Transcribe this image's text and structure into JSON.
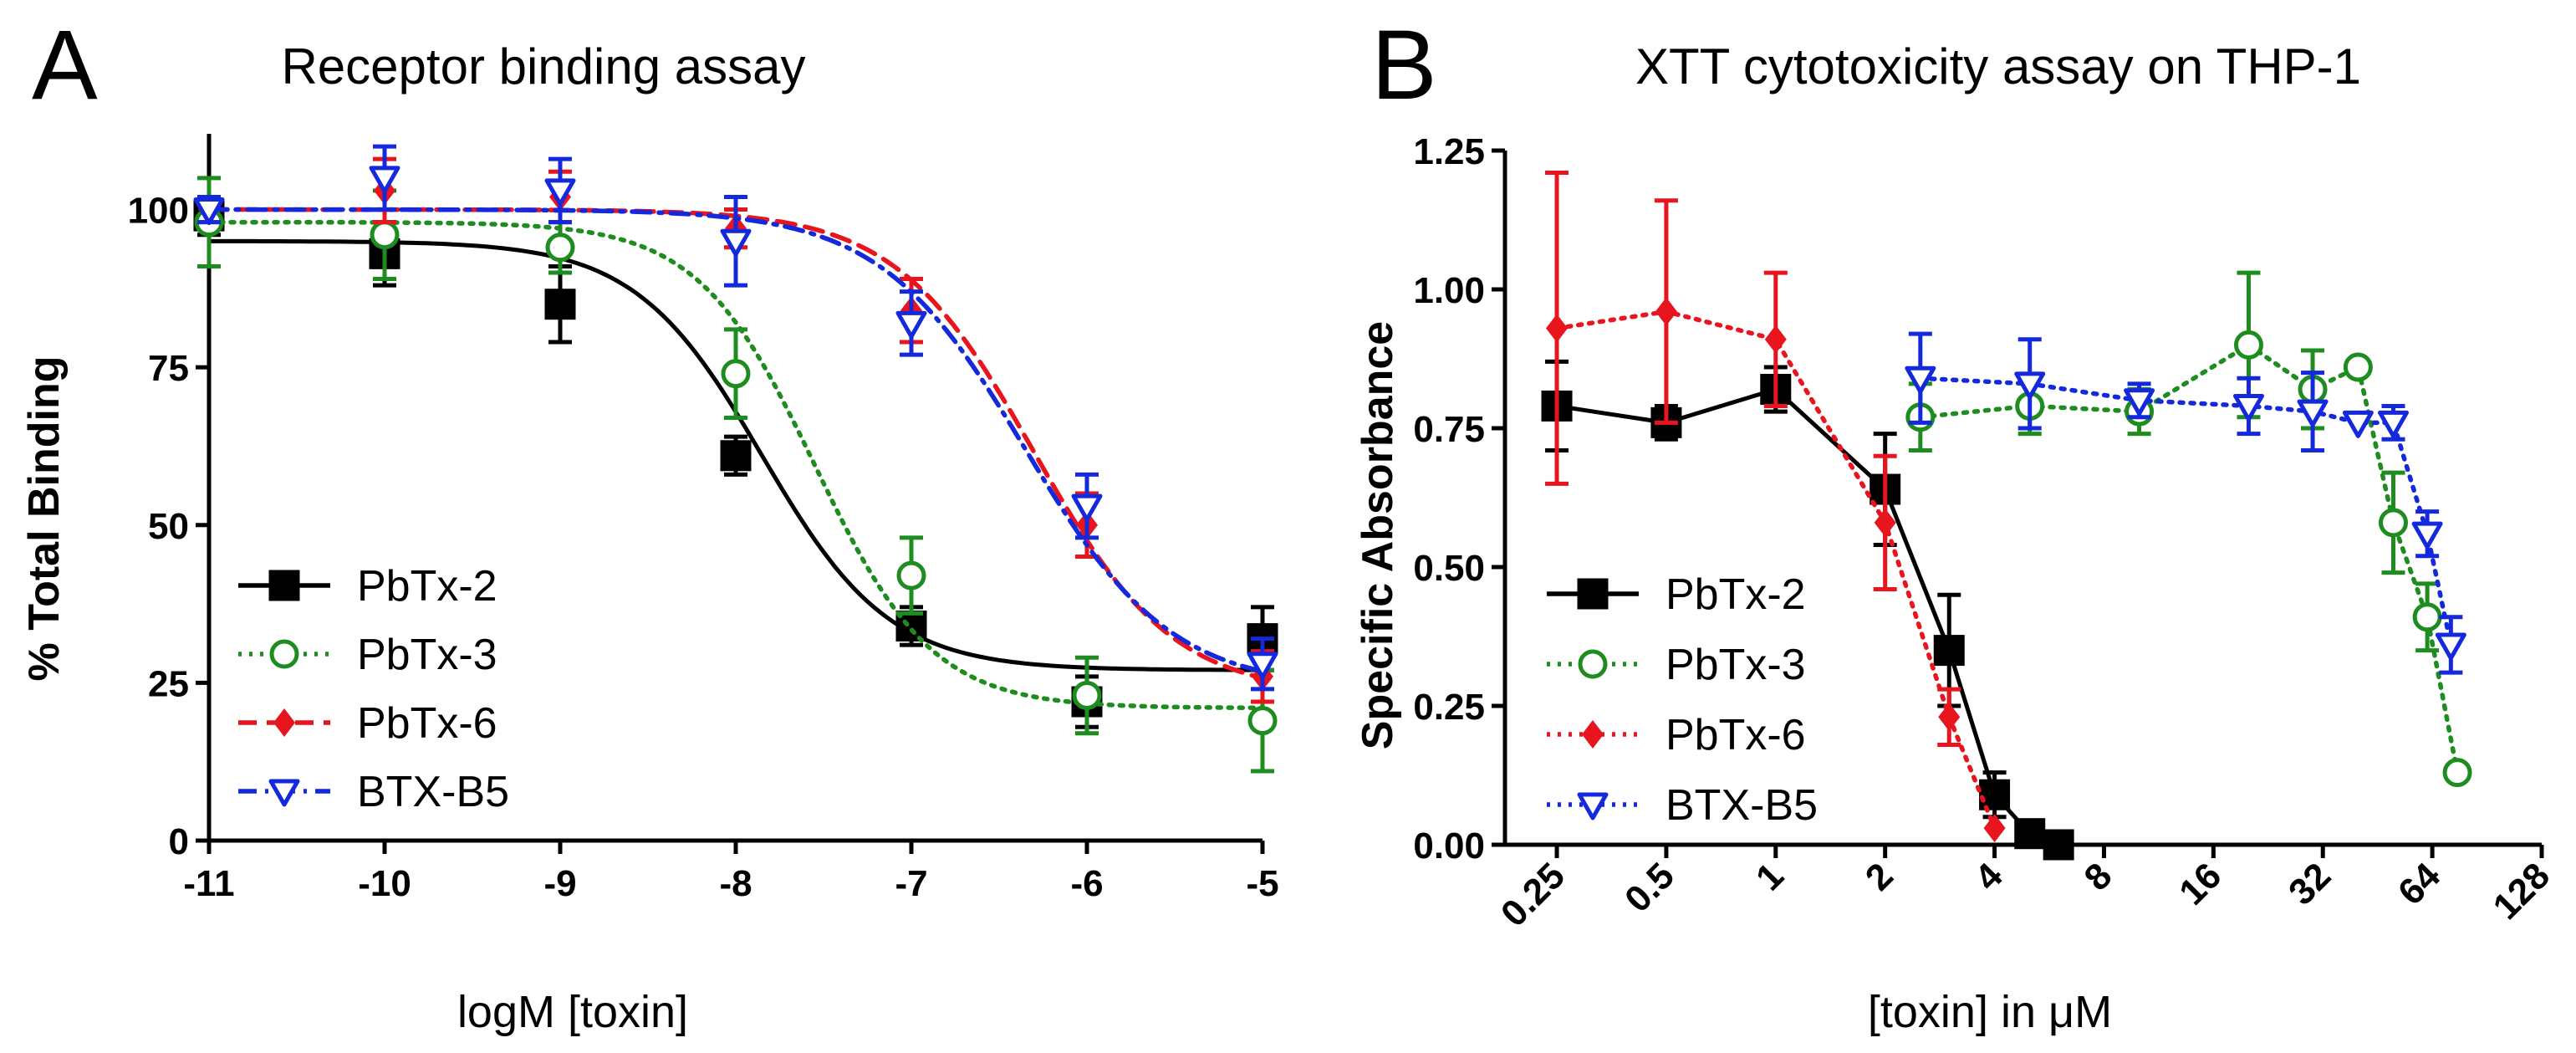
{
  "panels": [
    {
      "letter": "A"
    },
    {
      "letter": "B"
    }
  ],
  "chart_data": [
    {
      "type": "scatter",
      "title": "Receptor binding assay",
      "xlabel": "logM [toxin]",
      "ylabel": "% Total Binding",
      "xlim": [
        -11,
        -5
      ],
      "ylim": [
        0,
        112
      ],
      "xticks": [
        -11,
        -10,
        -9,
        -8,
        -7,
        -6,
        -5
      ],
      "xtick_labels": [
        "-11",
        "-10",
        "-9",
        "-8",
        "-7",
        "-6",
        "-5"
      ],
      "yticks": [
        0,
        25,
        50,
        75,
        100
      ],
      "ytick_labels": [
        "0",
        "25",
        "50",
        "75",
        "100"
      ],
      "legend_position": "bottom-left",
      "series": [
        {
          "name": "PbTx-2",
          "color": "#000000",
          "marker": "filled-square",
          "line": "solid",
          "fit": {
            "top": 95,
            "bottom": 27,
            "logEC50": -7.85,
            "hill": 1.2
          },
          "points": [
            {
              "x": -11,
              "y": 99,
              "err": 3
            },
            {
              "x": -10,
              "y": 93,
              "err": 5
            },
            {
              "x": -9,
              "y": 85,
              "err": 6
            },
            {
              "x": -8,
              "y": 61,
              "err": 3
            },
            {
              "x": -7,
              "y": 34,
              "err": 3
            },
            {
              "x": -6,
              "y": 22,
              "err": 4
            },
            {
              "x": -5,
              "y": 32,
              "err": 5
            }
          ]
        },
        {
          "name": "PbTx-3",
          "color": "#1e8c1e",
          "marker": "open-circle",
          "line": "dotted",
          "fit": {
            "top": 98,
            "bottom": 21,
            "logEC50": -7.55,
            "hill": 1.3
          },
          "points": [
            {
              "x": -11,
              "y": 98,
              "err": 7
            },
            {
              "x": -10,
              "y": 96,
              "err": 7
            },
            {
              "x": -9,
              "y": 94,
              "err": 4
            },
            {
              "x": -8,
              "y": 74,
              "err": 7
            },
            {
              "x": -7,
              "y": 42,
              "err": 6
            },
            {
              "x": -6,
              "y": 23,
              "err": 6
            },
            {
              "x": -5,
              "y": 19,
              "err": 8
            }
          ]
        },
        {
          "name": "PbTx-6",
          "color": "#e8141e",
          "marker": "filled-diamond",
          "line": "dashed",
          "fit": {
            "top": 100,
            "bottom": 23,
            "logEC50": -6.3,
            "hill": 1.1
          },
          "points": [
            {
              "x": -11,
              "y": 100,
              "err": 2
            },
            {
              "x": -10,
              "y": 103,
              "err": 5
            },
            {
              "x": -9,
              "y": 102,
              "err": 4
            },
            {
              "x": -8,
              "y": 97,
              "err": 3
            },
            {
              "x": -7,
              "y": 84,
              "err": 5
            },
            {
              "x": -6,
              "y": 50,
              "err": 5
            },
            {
              "x": -5,
              "y": 26,
              "err": 4
            }
          ]
        },
        {
          "name": "BTX-B5",
          "color": "#1428dc",
          "marker": "open-triangle-down",
          "line": "dash-dot",
          "fit": {
            "top": 100,
            "bottom": 24,
            "logEC50": -6.35,
            "hill": 1.05
          },
          "points": [
            {
              "x": -11,
              "y": 100,
              "err": 2
            },
            {
              "x": -10,
              "y": 105,
              "err": 5
            },
            {
              "x": -9,
              "y": 103,
              "err": 5
            },
            {
              "x": -8,
              "y": 95,
              "err": 7
            },
            {
              "x": -7,
              "y": 82,
              "err": 5
            },
            {
              "x": -6,
              "y": 53,
              "err": 5
            },
            {
              "x": -5,
              "y": 28,
              "err": 4
            }
          ]
        }
      ]
    },
    {
      "type": "line",
      "title": "XTT cytotoxicity assay on THP-1",
      "xlabel": "[toxin] in μM",
      "ylabel": "Specific Absorbance",
      "xscale": "log2",
      "xlim": [
        0.18,
        128
      ],
      "ylim": [
        0,
        1.25
      ],
      "xticks": [
        0.25,
        0.5,
        1,
        2,
        4,
        8,
        16,
        32,
        64,
        128
      ],
      "xtick_labels": [
        "0.25",
        "0.5",
        "1",
        "2",
        "4",
        "8",
        "16",
        "32",
        "64",
        "128"
      ],
      "yticks": [
        0,
        0.25,
        0.5,
        0.75,
        1.0,
        1.25
      ],
      "ytick_labels": [
        "0.00",
        "0.25",
        "0.50",
        "0.75",
        "1.00",
        "1.25"
      ],
      "legend_position": "bottom-left",
      "series": [
        {
          "name": "PbTx-2",
          "color": "#000000",
          "marker": "filled-square",
          "line": "solid",
          "points": [
            {
              "x": 0.25,
              "y": 0.79,
              "err": 0.08
            },
            {
              "x": 0.5,
              "y": 0.76,
              "err": 0.03
            },
            {
              "x": 1,
              "y": 0.82,
              "err": 0.04
            },
            {
              "x": 2,
              "y": 0.64,
              "err": 0.1
            },
            {
              "x": 3,
              "y": 0.35,
              "err": 0.1
            },
            {
              "x": 4,
              "y": 0.09,
              "err": 0.04
            },
            {
              "x": 5,
              "y": 0.02,
              "err": 0
            },
            {
              "x": 6,
              "y": 0.0,
              "err": 0
            }
          ]
        },
        {
          "name": "PbTx-3",
          "color": "#1e8c1e",
          "marker": "open-circle",
          "line": "dotted",
          "points": [
            {
              "x": 2.5,
              "y": 0.77,
              "err": 0.06
            },
            {
              "x": 5,
              "y": 0.79,
              "err": 0.05
            },
            {
              "x": 10,
              "y": 0.78,
              "err": 0.04
            },
            {
              "x": 20,
              "y": 0.9,
              "err": 0.13
            },
            {
              "x": 30,
              "y": 0.82,
              "err": 0.07
            },
            {
              "x": 40,
              "y": 0.86,
              "err": 0
            },
            {
              "x": 50,
              "y": 0.58,
              "err": 0.09
            },
            {
              "x": 62,
              "y": 0.41,
              "err": 0.06
            },
            {
              "x": 75,
              "y": 0.13,
              "err": 0
            }
          ]
        },
        {
          "name": "PbTx-6",
          "color": "#e8141e",
          "marker": "filled-diamond",
          "line": "dotted",
          "points": [
            {
              "x": 0.25,
              "y": 0.93,
              "err": 0.28
            },
            {
              "x": 0.5,
              "y": 0.96,
              "err": 0.2
            },
            {
              "x": 1,
              "y": 0.91,
              "err": 0.12
            },
            {
              "x": 2,
              "y": 0.58,
              "err": 0.12
            },
            {
              "x": 3,
              "y": 0.23,
              "err": 0.05
            },
            {
              "x": 4,
              "y": 0.03,
              "err": 0
            }
          ]
        },
        {
          "name": "BTX-B5",
          "color": "#1428dc",
          "marker": "open-triangle-down",
          "line": "dotted",
          "points": [
            {
              "x": 2.5,
              "y": 0.84,
              "err": 0.08
            },
            {
              "x": 5,
              "y": 0.83,
              "err": 0.08
            },
            {
              "x": 10,
              "y": 0.8,
              "err": 0.03
            },
            {
              "x": 20,
              "y": 0.79,
              "err": 0.05
            },
            {
              "x": 30,
              "y": 0.78,
              "err": 0.07
            },
            {
              "x": 40,
              "y": 0.76,
              "err": 0
            },
            {
              "x": 50,
              "y": 0.76,
              "err": 0.03
            },
            {
              "x": 62,
              "y": 0.56,
              "err": 0.04
            },
            {
              "x": 72,
              "y": 0.36,
              "err": 0.05
            }
          ]
        }
      ]
    }
  ]
}
